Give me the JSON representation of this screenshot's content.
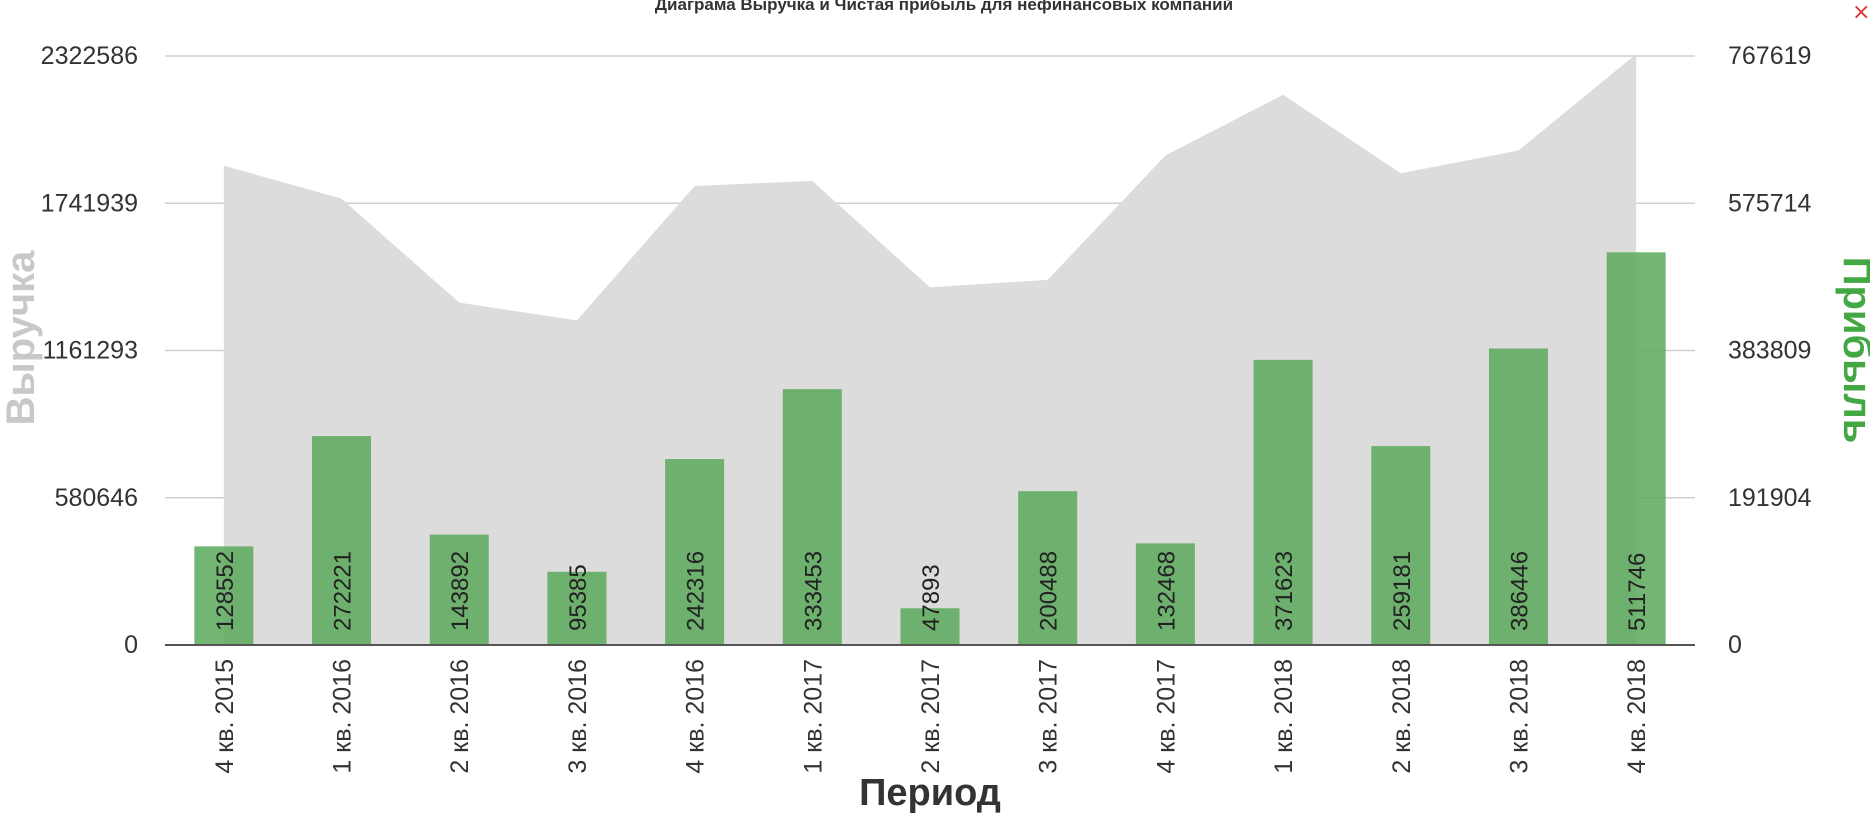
{
  "chart_data": {
    "type": "bar",
    "title": "Диаграма Выручка и Чистая прибыль для нефинансовых компаний",
    "xlabel": "Период",
    "ylabel_left": "Выручка",
    "ylabel_right": "Прибыль",
    "categories": [
      "4 кв. 2015",
      "1 кв. 2016",
      "2 кв. 2016",
      "3 кв. 2016",
      "4 кв. 2016",
      "1 кв. 2017",
      "2 кв. 2017",
      "3 кв. 2017",
      "4 кв. 2017",
      "1 кв. 2018",
      "2 кв. 2018",
      "3 кв. 2018",
      "4 кв. 2018"
    ],
    "left_axis": {
      "ylim": [
        0,
        2322586
      ],
      "ticks": [
        "0",
        "580646",
        "1161293",
        "1741939",
        "2322586"
      ]
    },
    "right_axis": {
      "ylim": [
        0,
        767619
      ],
      "ticks": [
        "0",
        "191904",
        "383809",
        "575714",
        "767619"
      ]
    },
    "series": [
      {
        "name": "Выручка",
        "type": "area",
        "axis": "left",
        "color": "#dcdcdc",
        "values": [
          1890000,
          1760000,
          1350000,
          1280000,
          1810000,
          1830000,
          1410000,
          1440000,
          1930000,
          2170000,
          1860000,
          1950000,
          2330000
        ]
      },
      {
        "name": "Прибыль",
        "type": "bar",
        "axis": "right",
        "color": "#5ba85b",
        "values": [
          128552,
          272221,
          143892,
          95385,
          242316,
          333453,
          47893,
          200488,
          132468,
          371623,
          259181,
          386446,
          511746
        ],
        "labels": [
          "128552",
          "272221",
          "143892",
          "95385",
          "242316",
          "333453",
          "47893",
          "200488",
          "132468",
          "371623",
          "259181",
          "386446",
          "511746"
        ]
      }
    ],
    "grid": true,
    "legend": "none"
  },
  "ui": {
    "close_icon": "close-icon",
    "close_glyph": "×"
  }
}
